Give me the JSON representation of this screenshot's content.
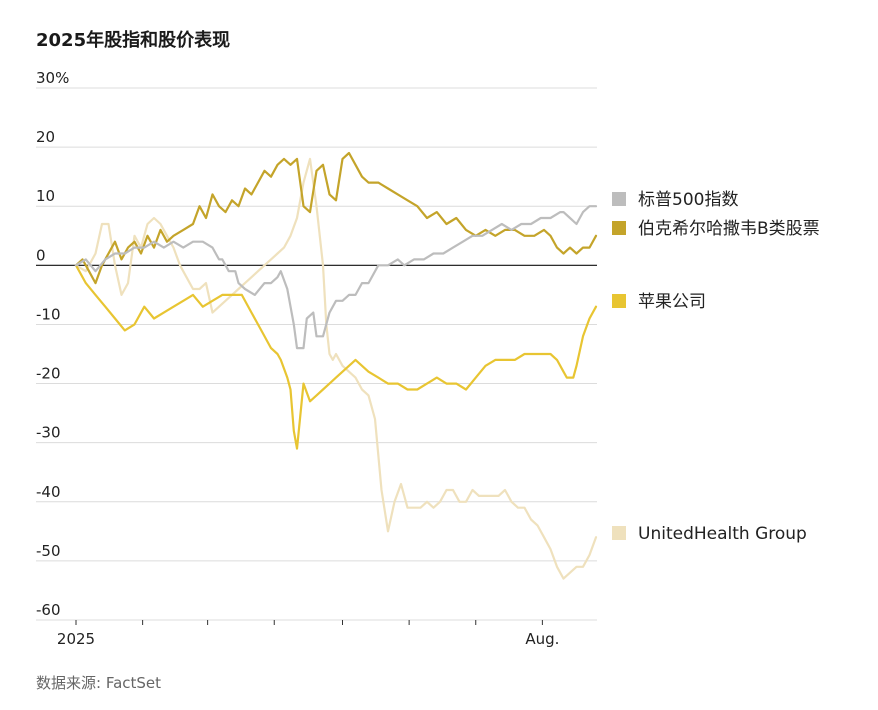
{
  "title": "2025年股指和股价表现",
  "source": "数据来源: FactSet",
  "chart_data": {
    "type": "line",
    "title": "2025年股指和股价表现",
    "xlabel": "",
    "ylabel": "",
    "ylim": [
      -60,
      30
    ],
    "yticks": [
      30,
      20,
      10,
      0,
      -10,
      -20,
      -30,
      -40,
      -50,
      -60
    ],
    "ytick_labels": [
      "30%",
      "20",
      "10",
      "0",
      "-10",
      "-20",
      "-30",
      "-40",
      "-50",
      "-60"
    ],
    "xlim": [
      0,
      160
    ],
    "xticks": [
      0,
      20.5,
      40.5,
      61,
      82,
      102.5,
      123,
      143.5
    ],
    "xtick_labels": [
      "2025",
      "",
      "",
      "",
      "",
      "",
      "",
      "Aug."
    ],
    "grid": true,
    "legend_placement": "right",
    "series": [
      {
        "name": "标普500指数",
        "color": "#bdbdbd",
        "x": [
          0,
          3,
          6,
          9,
          12,
          15,
          18,
          21,
          24,
          27,
          30,
          33,
          36,
          39,
          42,
          44,
          45,
          47,
          49,
          50,
          52,
          55,
          58,
          60,
          62,
          63,
          65,
          67,
          68,
          70,
          71,
          73,
          74,
          76,
          78,
          80,
          82,
          84,
          86,
          88,
          90,
          93,
          96,
          99,
          101,
          104,
          107,
          110,
          113,
          116,
          119,
          122,
          125,
          128,
          131,
          134,
          137,
          140,
          143,
          146,
          149,
          150,
          152,
          154,
          156,
          158,
          160
        ],
        "y": [
          0,
          1,
          -1,
          1,
          2,
          2,
          3,
          3,
          4,
          3,
          4,
          3,
          4,
          4,
          3,
          1,
          1,
          -1,
          -1,
          -3,
          -4,
          -5,
          -3,
          -3,
          -2,
          -1,
          -4,
          -10,
          -14,
          -14,
          -9,
          -8,
          -12,
          -12,
          -8,
          -6,
          -6,
          -5,
          -5,
          -3,
          -3,
          0,
          0,
          1,
          0,
          1,
          1,
          2,
          2,
          3,
          4,
          5,
          5,
          6,
          7,
          6,
          7,
          7,
          8,
          8,
          9,
          9,
          8,
          7,
          9,
          10,
          10
        ]
      },
      {
        "name": "伯克希尔哈撒韦B类股票",
        "color": "#c4a42a",
        "x": [
          0,
          2,
          4,
          6,
          8,
          10,
          12,
          14,
          16,
          18,
          20,
          22,
          24,
          26,
          28,
          30,
          33,
          36,
          38,
          40,
          42,
          44,
          46,
          48,
          50,
          52,
          54,
          56,
          58,
          60,
          62,
          64,
          66,
          68,
          70,
          72,
          74,
          76,
          78,
          80,
          82,
          84,
          86,
          88,
          90,
          93,
          96,
          99,
          102,
          105,
          108,
          111,
          114,
          117,
          120,
          123,
          126,
          129,
          132,
          135,
          138,
          141,
          144,
          146,
          148,
          150,
          152,
          154,
          156,
          158,
          160
        ],
        "y": [
          0,
          1,
          -1,
          -3,
          0,
          2,
          4,
          1,
          3,
          4,
          2,
          5,
          3,
          6,
          4,
          5,
          6,
          7,
          10,
          8,
          12,
          10,
          9,
          11,
          10,
          13,
          12,
          14,
          16,
          15,
          17,
          18,
          17,
          18,
          10,
          9,
          16,
          17,
          12,
          11,
          18,
          19,
          17,
          15,
          14,
          14,
          13,
          12,
          11,
          10,
          8,
          9,
          7,
          8,
          6,
          5,
          6,
          5,
          6,
          6,
          5,
          5,
          6,
          5,
          3,
          2,
          3,
          2,
          3,
          3,
          5
        ]
      },
      {
        "name": "苹果公司",
        "color": "#e8c532",
        "x": [
          0,
          3,
          6,
          9,
          12,
          15,
          18,
          21,
          24,
          27,
          30,
          33,
          36,
          39,
          42,
          45,
          48,
          51,
          54,
          57,
          60,
          62,
          63,
          65,
          66,
          67,
          68,
          70,
          72,
          74,
          76,
          78,
          80,
          82,
          84,
          86,
          88,
          90,
          93,
          96,
          99,
          102,
          105,
          108,
          111,
          114,
          117,
          120,
          123,
          126,
          129,
          132,
          135,
          138,
          141,
          144,
          146,
          148,
          150,
          151,
          153,
          154,
          156,
          158,
          160
        ],
        "y": [
          0,
          -3,
          -5,
          -7,
          -9,
          -11,
          -10,
          -7,
          -9,
          -8,
          -7,
          -6,
          -5,
          -7,
          -6,
          -5,
          -5,
          -5,
          -8,
          -11,
          -14,
          -15,
          -16,
          -19,
          -21,
          -28,
          -31,
          -20,
          -23,
          -22,
          -21,
          -20,
          -19,
          -18,
          -17,
          -16,
          -17,
          -18,
          -19,
          -20,
          -20,
          -21,
          -21,
          -20,
          -19,
          -20,
          -20,
          -21,
          -19,
          -17,
          -16,
          -16,
          -16,
          -15,
          -15,
          -15,
          -15,
          -16,
          -18,
          -19,
          -19,
          -17,
          -12,
          -9,
          -7
        ]
      },
      {
        "name": "UnitedHealth Group",
        "color": "#efe1bd",
        "x": [
          0,
          3,
          6,
          8,
          10,
          12,
          14,
          16,
          18,
          20,
          22,
          24,
          26,
          28,
          30,
          32,
          34,
          36,
          38,
          40,
          42,
          44,
          46,
          48,
          50,
          52,
          54,
          56,
          58,
          60,
          62,
          64,
          66,
          68,
          70,
          72,
          74,
          76,
          77,
          78,
          79,
          80,
          82,
          84,
          86,
          88,
          90,
          92,
          94,
          96,
          98,
          100,
          102,
          104,
          106,
          108,
          110,
          112,
          114,
          116,
          118,
          120,
          122,
          124,
          126,
          128,
          130,
          132,
          134,
          136,
          138,
          140,
          142,
          144,
          146,
          148,
          150,
          152,
          154,
          156,
          158,
          160
        ],
        "y": [
          0,
          -1,
          2,
          7,
          7,
          0,
          -5,
          -3,
          5,
          3,
          7,
          8,
          7,
          5,
          3,
          0,
          -2,
          -4,
          -4,
          -3,
          -8,
          -7,
          -6,
          -5,
          -4,
          -3,
          -2,
          -1,
          0,
          1,
          2,
          3,
          5,
          8,
          14,
          18,
          10,
          0,
          -10,
          -15,
          -16,
          -15,
          -17,
          -18,
          -19,
          -21,
          -22,
          -26,
          -38,
          -45,
          -40,
          -37,
          -41,
          -41,
          -41,
          -40,
          -41,
          -40,
          -38,
          -38,
          -40,
          -40,
          -38,
          -39,
          -39,
          -39,
          -39,
          -38,
          -40,
          -41,
          -41,
          -43,
          -44,
          -46,
          -48,
          -51,
          -53,
          -52,
          -51,
          -51,
          -49,
          -46
        ]
      }
    ]
  },
  "legend": [
    {
      "series": 0,
      "label": "标普500指数",
      "color": "#bdbdbd"
    },
    {
      "series": 1,
      "label": "伯克希尔哈撒韦B类股票",
      "color": "#c4a42a"
    },
    {
      "series": 2,
      "label": "苹果公司",
      "color": "#e8c532"
    },
    {
      "series": 3,
      "label": "UnitedHealth Group",
      "color": "#efe1bd"
    }
  ]
}
